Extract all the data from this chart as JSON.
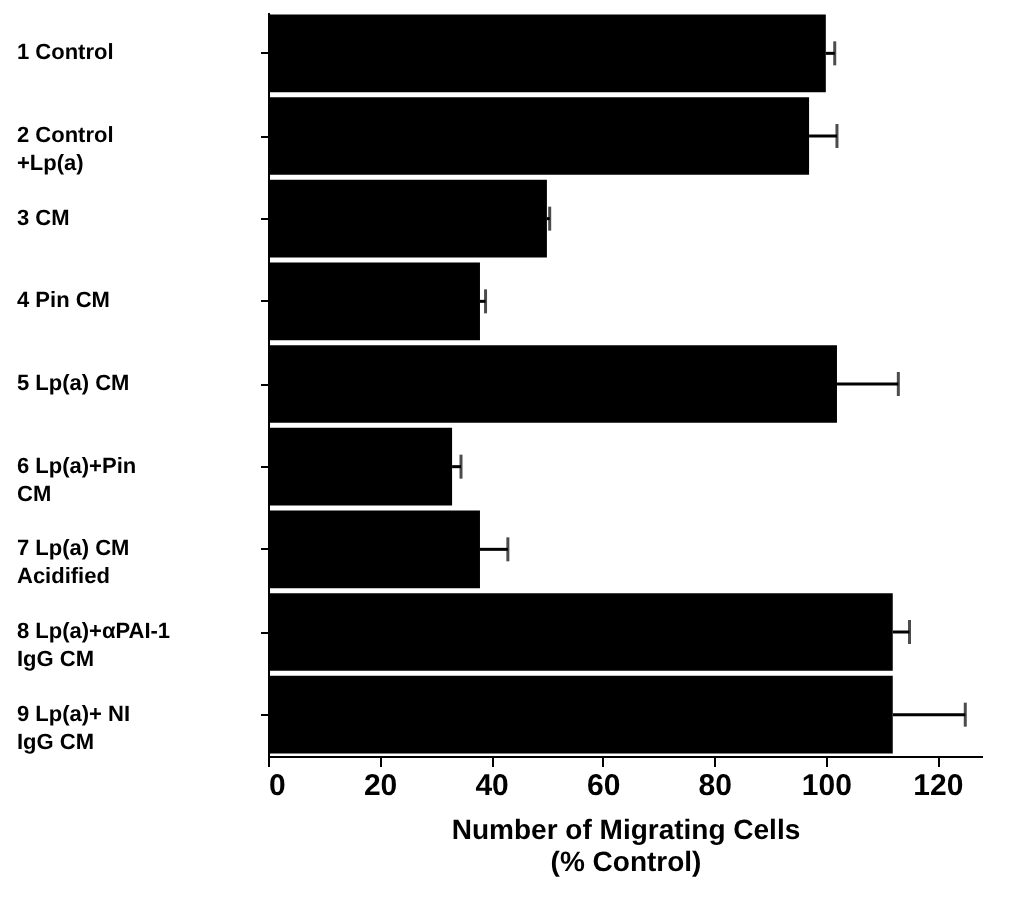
{
  "chart_data": {
    "type": "bar",
    "orientation": "horizontal",
    "xlabel": "Number of Migrating Cells\n(% Control)",
    "categories": [
      "1  Control",
      "2  Control\n     +Lp(a)",
      "3  CM",
      "4  Pin  CM",
      "5  Lp(a)  CM",
      "6  Lp(a)+Pin\n            CM",
      "7  Lp(a)  CM\n     Acidified",
      "8  Lp(a)+αPAI-1\n         IgG CM",
      "9  Lp(a)+  NI\n         IgG CM"
    ],
    "values": [
      100,
      97,
      50,
      38,
      102,
      33,
      38,
      112,
      112
    ],
    "errors": [
      1.6,
      5,
      0.5,
      1,
      11,
      1.6,
      5,
      3,
      13
    ],
    "color": "#000000",
    "xlim": [
      0,
      128
    ],
    "xticks": [
      0,
      20,
      40,
      60,
      80,
      100,
      120
    ],
    "grid": false
  }
}
